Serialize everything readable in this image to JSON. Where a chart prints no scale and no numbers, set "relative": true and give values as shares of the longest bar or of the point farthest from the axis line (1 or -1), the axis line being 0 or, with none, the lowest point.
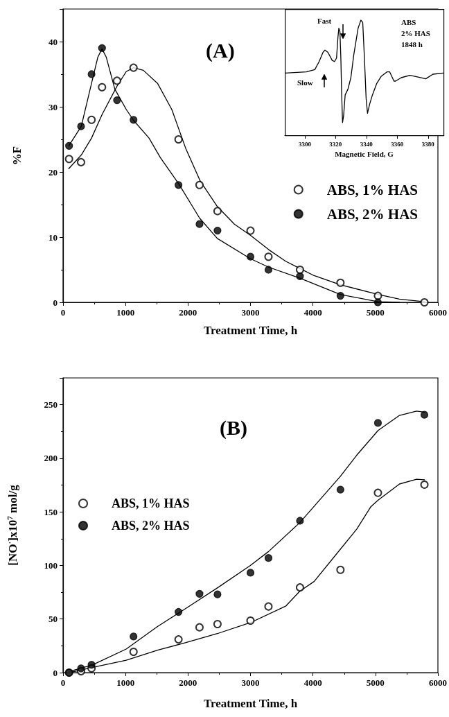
{
  "chart_data": [
    {
      "type": "scatter",
      "title": "(A)",
      "xlabel": "Treatment Time, h",
      "ylabel": "%F",
      "xlim": [
        0,
        6000
      ],
      "xticks": [
        0,
        1000,
        2000,
        3000,
        4000,
        5000,
        6000
      ],
      "ylim": [
        0,
        45
      ],
      "yticks": [
        0,
        10,
        20,
        30,
        40
      ],
      "legend": "right",
      "marker": "circle",
      "series": [
        {
          "name": "ABS, 1% HAS",
          "color": "#000000",
          "marker": "open circle",
          "x": [
            96,
            288,
            456,
            624,
            864,
            1128,
            1848,
            2184,
            2472,
            3000,
            3288,
            3792,
            4440,
            5040,
            5784
          ],
          "values": [
            22,
            21.5,
            28,
            33,
            34,
            36,
            25,
            18,
            14,
            11,
            7,
            5,
            3,
            1,
            0
          ]
        },
        {
          "name": "ABS, 2% HAS",
          "color": "#000000",
          "x": [
            96,
            288,
            456,
            624,
            864,
            1128,
            1848,
            2184,
            2472,
            3000,
            3288,
            3792,
            4440,
            5040
          ],
          "values": [
            24,
            27,
            35,
            39,
            31,
            28,
            18,
            12,
            11,
            7,
            5,
            4,
            1,
            0
          ]
        },
        {
          "type": "line",
          "color": "#000000",
          "marker": "none",
          "x": [
            91,
            292,
            456,
            624,
            866,
            1011,
            1130,
            1285,
            1512,
            1740,
            1968,
            2196,
            2469,
            2742,
            2998,
            3289,
            3563,
            3790,
            4018,
            4437,
            5043,
            5385,
            5786
          ],
          "values": [
            20.5,
            22.6,
            25.2,
            28.8,
            33.2,
            35.4,
            36,
            35.6,
            33.6,
            29.6,
            23.5,
            18.6,
            14.7,
            12,
            10.3,
            8.1,
            6.3,
            5.2,
            4.1,
            2.7,
            1.2,
            0.5,
            0.1
          ]
        },
        {
          "type": "line",
          "color": "#000000",
          "marker": "none",
          "x": [
            91,
            292,
            456,
            556,
            624,
            692,
            829,
            1011,
            1130,
            1376,
            1558,
            1850,
            2187,
            2469,
            2998,
            3289,
            3790,
            4437,
            5043,
            5385
          ],
          "values": [
            24,
            27,
            33.6,
            37.6,
            38.9,
            37.6,
            32.7,
            29.6,
            27.9,
            25.2,
            22.2,
            18.2,
            12.9,
            9.8,
            6.7,
            5.4,
            3.7,
            1.2,
            0.1,
            0
          ]
        }
      ]
    },
    {
      "type": "line",
      "relative": true,
      "tick_labels": "x",
      "xlabel": "Magnetic Field, G",
      "xlim": [
        3287,
        3390
      ],
      "xticks": [
        3300,
        3320,
        3340,
        3360,
        3380
      ],
      "annotations": [
        "Fast",
        "Slow",
        "ABS",
        "2% HAS",
        "1848 h"
      ],
      "series": [
        {
          "color": "#000000",
          "x": [
            3287.3,
            3301,
            3306.5,
            3309.3,
            3311.8,
            3313.1,
            3315,
            3317.8,
            3319.3,
            3320.6,
            3321.5,
            3322.1,
            3322.8,
            3323.4,
            3323.9,
            3324.5,
            3325.2,
            3326.2,
            3328,
            3329.9,
            3331.8,
            3334.6,
            3336.4,
            3337.6,
            3338.7,
            3339.8,
            3340.7,
            3342.1,
            3343.9,
            3346.7,
            3349.5,
            3353.3,
            3355.1,
            3357.9,
            3358.9,
            3362.6,
            3368.2,
            3372,
            3378.5,
            3383.2,
            3389.7
          ],
          "values": [
            0.54,
            0.55,
            0.57,
            0.64,
            0.72,
            0.74,
            0.72,
            0.65,
            0.64,
            0.67,
            0.85,
            0.93,
            0.9,
            0.67,
            0.37,
            0.11,
            0.17,
            0.35,
            0.4,
            0.5,
            0.7,
            0.93,
            1,
            0.98,
            0.67,
            0.32,
            0.19,
            0.27,
            0.35,
            0.45,
            0.51,
            0.55,
            0.55,
            0.47,
            0.47,
            0.5,
            0.52,
            0.51,
            0.49,
            0.53,
            0.54
          ]
        }
      ]
    },
    {
      "type": "scatter",
      "title": "(B)",
      "xlabel": "Treatment Time, h",
      "ylabel": "[NO$^{·}$]x10$^{7}$ mol/g",
      "xlim": [
        0,
        6000
      ],
      "xticks": [
        0,
        1000,
        2000,
        3000,
        4000,
        5000,
        6000
      ],
      "ylim": [
        0,
        275
      ],
      "yticks": [
        0,
        50,
        100,
        150,
        200,
        250
      ],
      "legend": "left",
      "marker": "circle",
      "series": [
        {
          "name": "ABS, 1% HAS",
          "color": "#000000",
          "marker": "open circle",
          "x": [
            96,
            288,
            456,
            1128,
            1848,
            2184,
            2472,
            3000,
            3288,
            3792,
            4440,
            5040,
            5784
          ],
          "values": [
            0,
            1.3,
            4,
            19.4,
            31,
            42.3,
            45.3,
            48.5,
            61.7,
            79.5,
            95.9,
            167.8,
            175.4
          ]
        },
        {
          "name": "ABS, 2% HAS",
          "color": "#000000",
          "x": [
            96,
            288,
            456,
            1128,
            1848,
            2184,
            2472,
            3000,
            3288,
            3792,
            4440,
            5040,
            5784
          ],
          "values": [
            0,
            4,
            7.3,
            33.7,
            56.6,
            73.5,
            73,
            93.2,
            107,
            141.7,
            170.8,
            233,
            240.6
          ]
        },
        {
          "type": "line",
          "color": "#000000",
          "marker": "none",
          "x": [
            100,
            465,
            1011,
            1512,
            1968,
            2469,
            2998,
            3563,
            3790,
            4018,
            4437,
            4702,
            4929,
            5043,
            5385,
            5658,
            5786
          ],
          "values": [
            0,
            4.8,
            11.6,
            21,
            28,
            36.4,
            46.6,
            62,
            76,
            85,
            115,
            134,
            155,
            161,
            176,
            180.5,
            180
          ]
        },
        {
          "type": "line",
          "color": "#000000",
          "marker": "none",
          "x": [
            100,
            465,
            1011,
            1512,
            1968,
            2469,
            2998,
            3289,
            3790,
            4437,
            4702,
            5043,
            5385,
            5658,
            5786
          ],
          "values": [
            1,
            7,
            22,
            43,
            60,
            79,
            100,
            113,
            140,
            183,
            203,
            226,
            240,
            244,
            243
          ]
        }
      ]
    }
  ]
}
